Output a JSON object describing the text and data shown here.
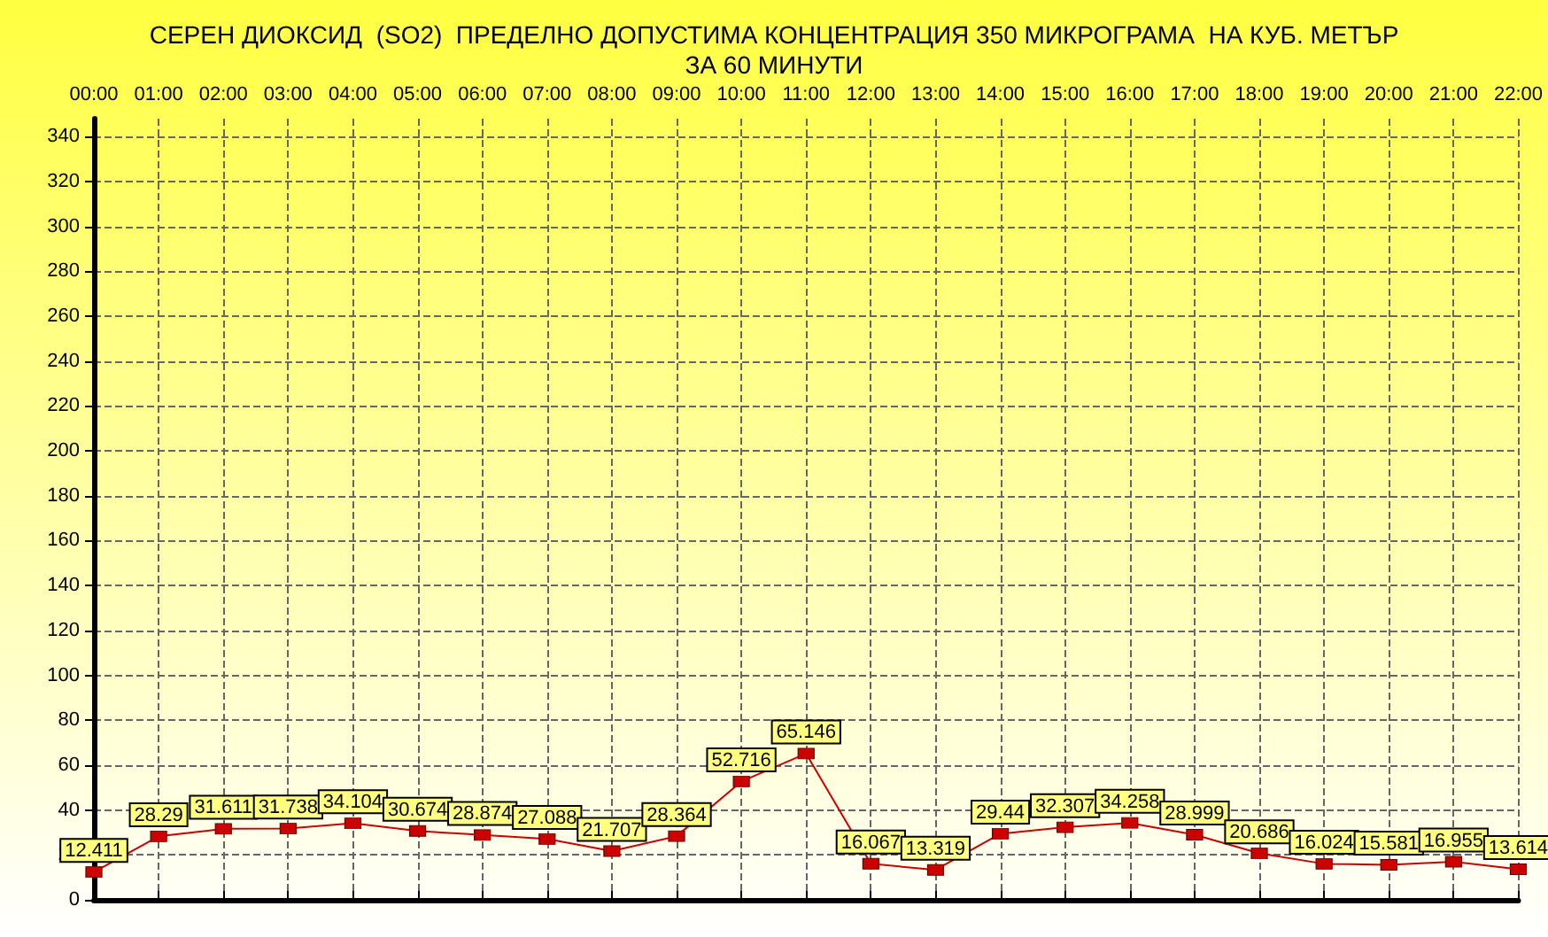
{
  "chart_data": {
    "type": "line",
    "title": "СЕРЕН ДИОКСИД  (SO2)  ПРЕДЕЛНО ДОПУСТИМА КОНЦЕНТРАЦИЯ 350 МИКРОГРАМА  НА КУБ. МЕТЪР\nЗА 60 МИНУТИ",
    "categories": [
      "00:00",
      "01:00",
      "02:00",
      "03:00",
      "04:00",
      "05:00",
      "06:00",
      "07:00",
      "08:00",
      "09:00",
      "10:00",
      "11:00",
      "12:00",
      "13:00",
      "14:00",
      "15:00",
      "16:00",
      "17:00",
      "18:00",
      "19:00",
      "20:00",
      "21:00",
      "22:00"
    ],
    "series": [
      {
        "color": "#cc0000",
        "values": [
          12.411,
          28.29,
          31.611,
          31.738,
          34.104,
          30.674,
          28.874,
          27.088,
          21.707,
          28.364,
          52.716,
          65.146,
          16.067,
          13.319,
          29.44,
          32.307,
          34.258,
          28.999,
          20.686,
          16.024,
          15.581,
          16.955,
          13.614
        ]
      }
    ],
    "ylim": [
      0,
      348
    ],
    "yticks": [
      0,
      20,
      40,
      60,
      80,
      100,
      120,
      140,
      160,
      180,
      200,
      220,
      240,
      260,
      280,
      300,
      320,
      340
    ],
    "grid": true,
    "marker": "square",
    "line_style": "solid",
    "data_labels": true
  }
}
